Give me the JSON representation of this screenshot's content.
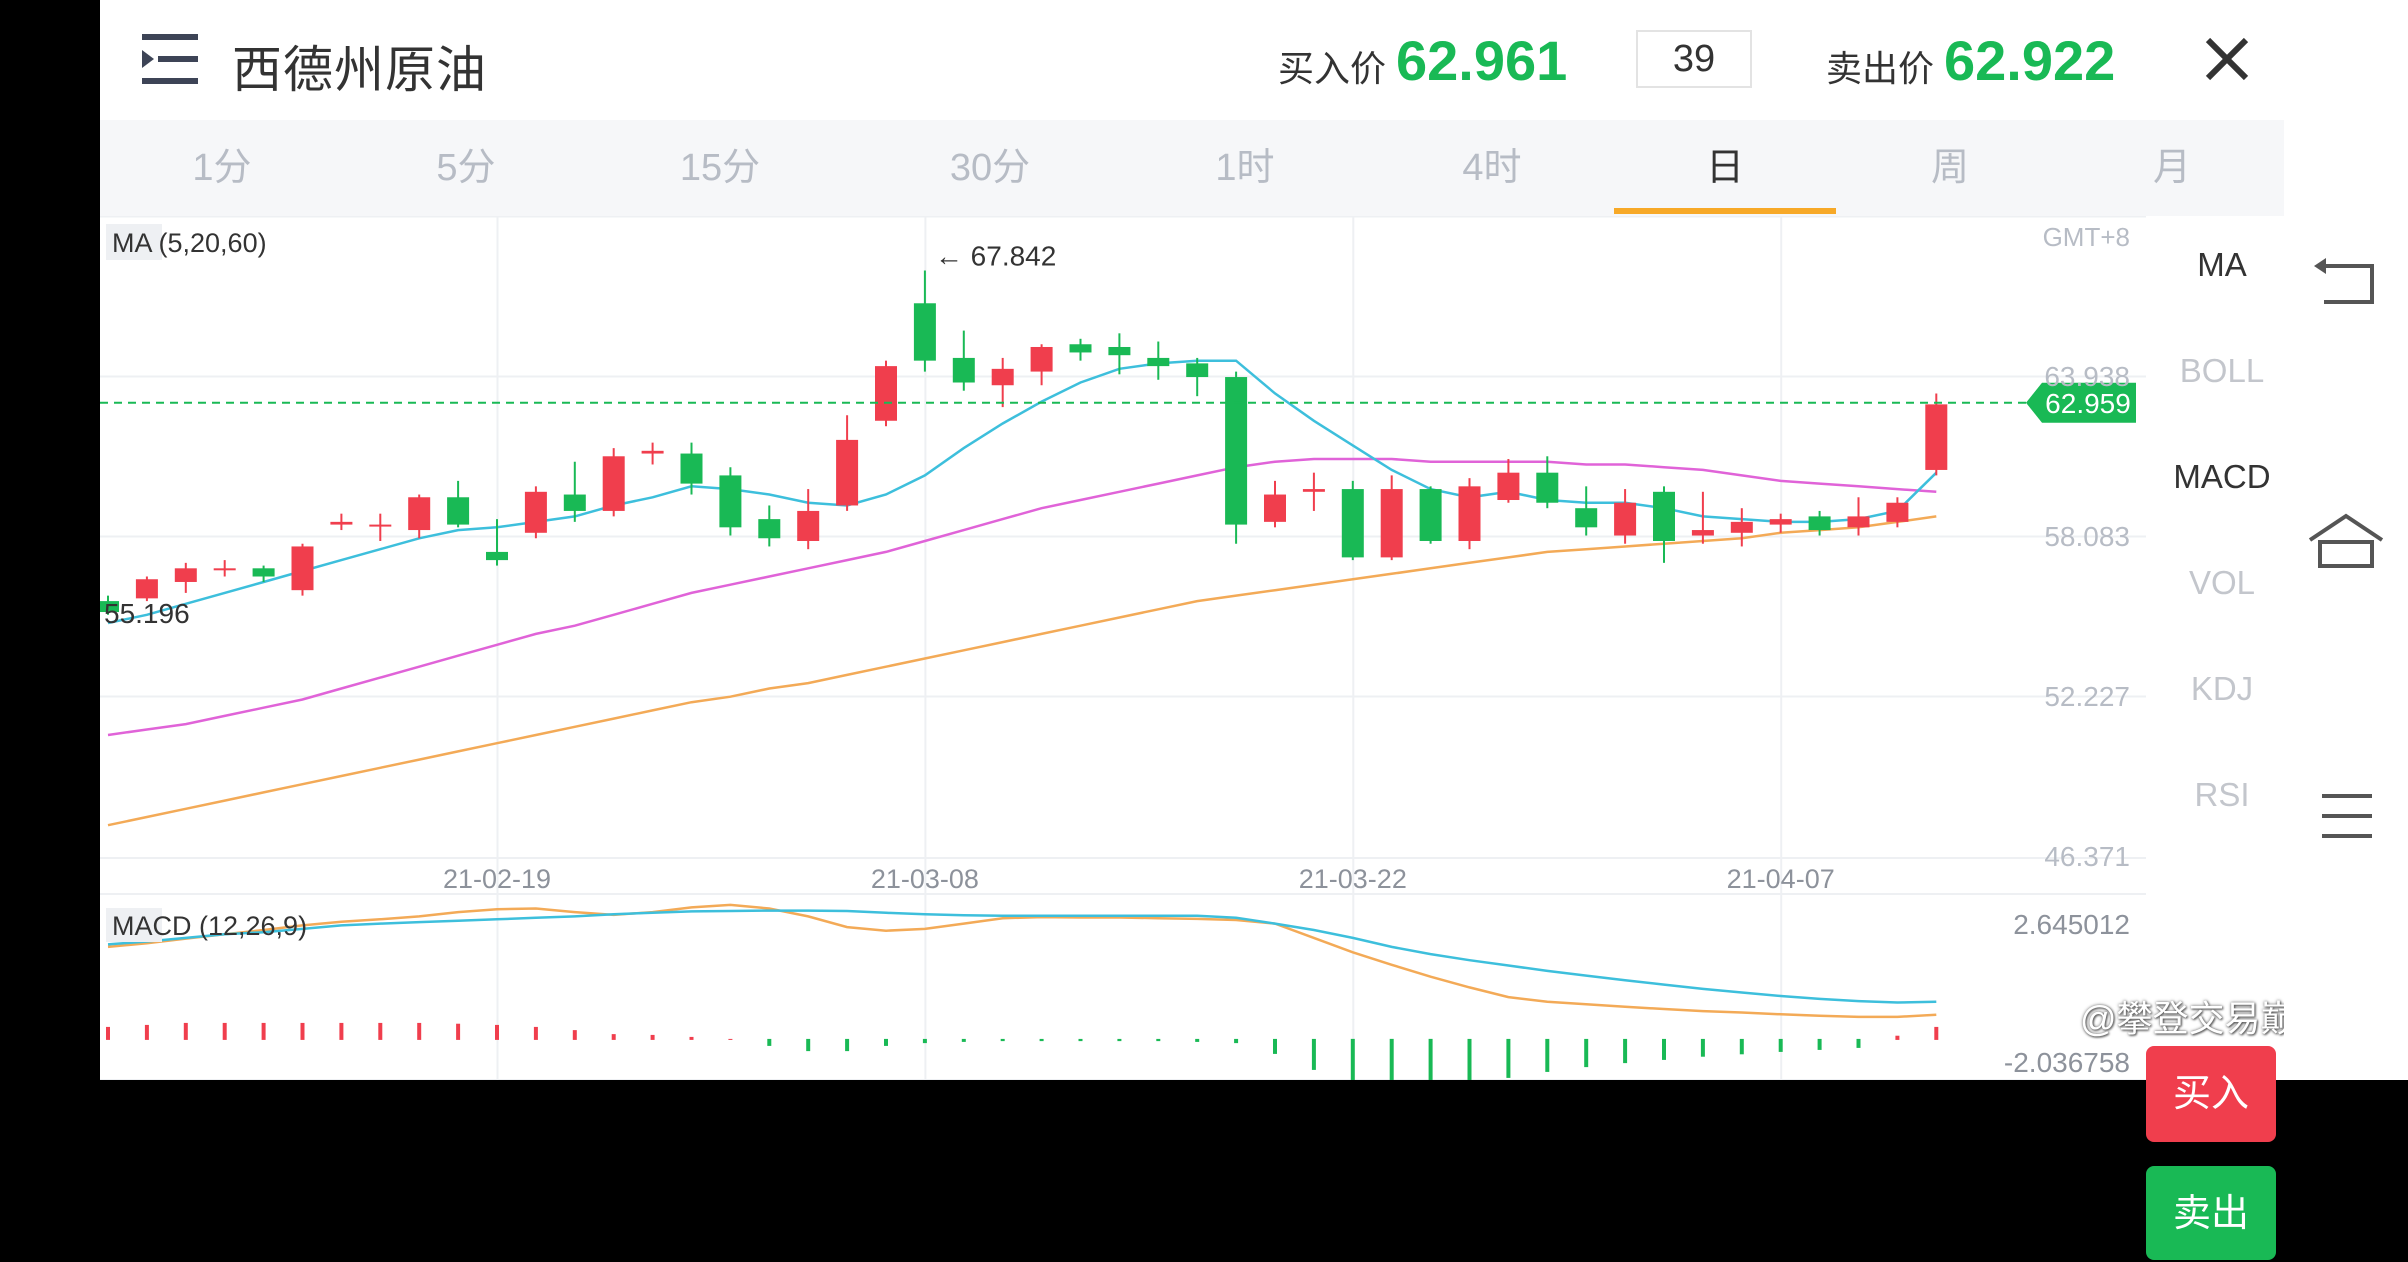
{
  "header": {
    "title": "西德州原油",
    "buy_label": "买入价",
    "buy_price": "62.961",
    "spread": "39",
    "sell_label": "卖出价",
    "sell_price": "62.922"
  },
  "tabs": [
    {
      "label": "1分",
      "active": false
    },
    {
      "label": "5分",
      "active": false
    },
    {
      "label": "15分",
      "active": false
    },
    {
      "label": "30分",
      "active": false
    },
    {
      "label": "1时",
      "active": false
    },
    {
      "label": "4时",
      "active": false
    },
    {
      "label": "日",
      "active": true
    },
    {
      "label": "周",
      "active": false
    },
    {
      "label": "月",
      "active": false
    }
  ],
  "indicators": [
    {
      "label": "MA",
      "active": true
    },
    {
      "label": "BOLL",
      "active": false
    },
    {
      "label": "MACD",
      "active": true
    },
    {
      "label": "VOL",
      "active": false
    },
    {
      "label": "KDJ",
      "active": false
    },
    {
      "label": "RSI",
      "active": false
    }
  ],
  "buttons": {
    "buy": "买入",
    "sell": "卖出"
  },
  "watermark": "@攀登交易巅峰",
  "colors": {
    "up": "#f03e4d",
    "down": "#19b955",
    "accent": "#f7a928",
    "ma5": "#3dbfdc",
    "ma20": "#e063d8",
    "ma60": "#f3aa57"
  },
  "chart_data": {
    "type": "candlestick",
    "timezone": "GMT+8",
    "main_legend": "MA (5,20,60)",
    "y_ticks": [
      "63.938",
      "58.083",
      "52.227",
      "46.371"
    ],
    "ylim": [
      46.371,
      69.794
    ],
    "current_price": "62.959",
    "max_label": "← 67.842",
    "min_label": "55.196",
    "x_ticks": [
      {
        "label": "21-02-19",
        "index": 10
      },
      {
        "label": "21-03-08",
        "index": 21
      },
      {
        "label": "21-03-22",
        "index": 32
      },
      {
        "label": "21-04-07",
        "index": 43
      }
    ],
    "candles": [
      [
        55.7,
        55.3,
        55.9,
        55.2
      ],
      [
        55.8,
        56.5,
        56.6,
        55.7
      ],
      [
        56.4,
        56.9,
        57.1,
        56.0
      ],
      [
        56.9,
        56.9,
        57.2,
        56.6
      ],
      [
        56.9,
        56.6,
        57.0,
        56.4
      ],
      [
        56.1,
        57.7,
        57.8,
        55.9
      ],
      [
        58.5,
        58.6,
        58.9,
        58.3
      ],
      [
        58.5,
        58.5,
        58.9,
        57.9
      ],
      [
        58.3,
        59.5,
        59.6,
        58.0
      ],
      [
        59.5,
        58.5,
        60.1,
        58.4
      ],
      [
        57.5,
        57.2,
        58.7,
        57.0
      ],
      [
        58.2,
        59.7,
        59.9,
        58.0
      ],
      [
        59.6,
        59.0,
        60.8,
        58.6
      ],
      [
        59.0,
        61.0,
        61.3,
        58.8
      ],
      [
        61.1,
        61.2,
        61.5,
        60.7
      ],
      [
        61.1,
        60.0,
        61.5,
        59.6
      ],
      [
        60.3,
        58.4,
        60.6,
        58.1
      ],
      [
        58.7,
        58.0,
        59.2,
        57.7
      ],
      [
        57.9,
        59.0,
        59.8,
        57.6
      ],
      [
        59.2,
        61.6,
        62.5,
        59.0
      ],
      [
        62.3,
        64.3,
        64.5,
        62.1
      ],
      [
        66.6,
        64.5,
        67.8,
        64.1
      ],
      [
        64.6,
        63.7,
        65.6,
        63.4
      ],
      [
        63.6,
        64.2,
        64.6,
        62.8
      ],
      [
        64.1,
        65.0,
        65.1,
        63.6
      ],
      [
        65.1,
        64.8,
        65.3,
        64.5
      ],
      [
        65.0,
        64.7,
        65.5,
        64.0
      ],
      [
        64.6,
        64.3,
        65.2,
        63.8
      ],
      [
        64.4,
        63.9,
        64.6,
        63.2
      ],
      [
        63.9,
        58.5,
        64.1,
        57.8
      ],
      [
        58.6,
        59.6,
        60.1,
        58.4
      ],
      [
        59.7,
        59.8,
        60.4,
        59.0
      ],
      [
        59.8,
        57.3,
        60.1,
        57.2
      ],
      [
        57.3,
        59.8,
        60.3,
        57.2
      ],
      [
        59.8,
        57.9,
        59.9,
        57.8
      ],
      [
        57.9,
        59.9,
        60.2,
        57.6
      ],
      [
        59.4,
        60.4,
        60.9,
        59.3
      ],
      [
        60.4,
        59.3,
        61.0,
        59.1
      ],
      [
        59.1,
        58.4,
        59.9,
        58.1
      ],
      [
        58.1,
        59.3,
        59.8,
        57.8
      ],
      [
        59.7,
        57.9,
        59.9,
        57.1
      ],
      [
        58.1,
        58.3,
        59.7,
        57.8
      ],
      [
        58.2,
        58.6,
        59.1,
        57.7
      ],
      [
        58.5,
        58.7,
        58.9,
        58.2
      ],
      [
        58.8,
        58.3,
        59.0,
        58.1
      ],
      [
        58.4,
        58.8,
        59.5,
        58.1
      ],
      [
        58.6,
        59.3,
        59.5,
        58.4
      ],
      [
        60.5,
        62.9,
        63.3,
        60.3
      ]
    ],
    "ma5": [
      54.9,
      55.2,
      55.6,
      56.0,
      56.4,
      56.8,
      57.2,
      57.6,
      58.0,
      58.3,
      58.4,
      58.6,
      58.8,
      59.2,
      59.5,
      59.9,
      59.8,
      59.6,
      59.3,
      59.2,
      59.6,
      60.3,
      61.3,
      62.2,
      63.0,
      63.7,
      64.2,
      64.4,
      64.5,
      64.5,
      63.3,
      62.3,
      61.4,
      60.5,
      59.8,
      59.5,
      59.7,
      59.4,
      59.3,
      59.3,
      59.1,
      58.8,
      58.7,
      58.6,
      58.6,
      58.7,
      59.0,
      60.4
    ],
    "ma20": [
      50.8,
      51.0,
      51.2,
      51.5,
      51.8,
      52.1,
      52.5,
      52.9,
      53.3,
      53.7,
      54.1,
      54.5,
      54.8,
      55.2,
      55.6,
      56.0,
      56.3,
      56.6,
      56.9,
      57.2,
      57.5,
      57.9,
      58.3,
      58.7,
      59.1,
      59.4,
      59.7,
      60.0,
      60.3,
      60.6,
      60.8,
      60.9,
      60.9,
      60.9,
      60.8,
      60.8,
      60.8,
      60.8,
      60.7,
      60.7,
      60.6,
      60.5,
      60.3,
      60.1,
      60.0,
      59.9,
      59.8,
      59.7
    ],
    "ma60": [
      47.5,
      47.8,
      48.1,
      48.4,
      48.7,
      49.0,
      49.3,
      49.6,
      49.9,
      50.2,
      50.5,
      50.8,
      51.1,
      51.4,
      51.7,
      52.0,
      52.2,
      52.5,
      52.7,
      53.0,
      53.3,
      53.6,
      53.9,
      54.2,
      54.5,
      54.8,
      55.1,
      55.4,
      55.7,
      55.9,
      56.1,
      56.3,
      56.5,
      56.7,
      56.9,
      57.1,
      57.3,
      57.5,
      57.6,
      57.7,
      57.8,
      57.9,
      58.0,
      58.2,
      58.3,
      58.4,
      58.6,
      58.8
    ],
    "macd_legend": "MACD (12,26,9)",
    "macd_ticks": [
      "2.645012",
      "-2.036758"
    ],
    "macd_ylim": [
      -2.036758,
      2.645012
    ],
    "dif": [
      1.52,
      1.6,
      1.7,
      1.8,
      1.86,
      1.95,
      2.05,
      2.1,
      2.14,
      2.18,
      2.22,
      2.26,
      2.3,
      2.36,
      2.4,
      2.44,
      2.45,
      2.46,
      2.46,
      2.45,
      2.4,
      2.36,
      2.33,
      2.32,
      2.32,
      2.32,
      2.32,
      2.32,
      2.32,
      2.26,
      2.1,
      1.92,
      1.7,
      1.45,
      1.25,
      1.08,
      0.93,
      0.78,
      0.65,
      0.52,
      0.4,
      0.28,
      0.18,
      0.08,
      0.0,
      -0.06,
      -0.1,
      -0.08
    ],
    "dea": [
      1.45,
      1.55,
      1.68,
      1.8,
      1.92,
      2.05,
      2.15,
      2.22,
      2.3,
      2.42,
      2.5,
      2.52,
      2.42,
      2.34,
      2.42,
      2.55,
      2.62,
      2.52,
      2.3,
      2.0,
      1.9,
      1.95,
      2.1,
      2.25,
      2.28,
      2.27,
      2.27,
      2.25,
      2.23,
      2.2,
      2.1,
      1.7,
      1.3,
      0.95,
      0.62,
      0.32,
      0.05,
      -0.08,
      -0.15,
      -0.22,
      -0.28,
      -0.34,
      -0.38,
      -0.43,
      -0.47,
      -0.5,
      -0.5,
      -0.44
    ],
    "hist": [
      0.3,
      0.35,
      0.4,
      0.4,
      0.4,
      0.4,
      0.4,
      0.4,
      0.4,
      0.38,
      0.35,
      0.3,
      0.22,
      0.12,
      0.1,
      0.05,
      0.0,
      -0.15,
      -0.28,
      -0.28,
      -0.15,
      -0.08,
      -0.05,
      -0.03,
      -0.03,
      -0.03,
      -0.03,
      -0.03,
      -0.05,
      -0.08,
      -0.35,
      -0.75,
      -1.05,
      -1.1,
      -1.1,
      -1.05,
      -0.95,
      -0.8,
      -0.68,
      -0.58,
      -0.5,
      -0.42,
      -0.36,
      -0.3,
      -0.25,
      -0.2,
      0.08,
      0.3
    ]
  }
}
